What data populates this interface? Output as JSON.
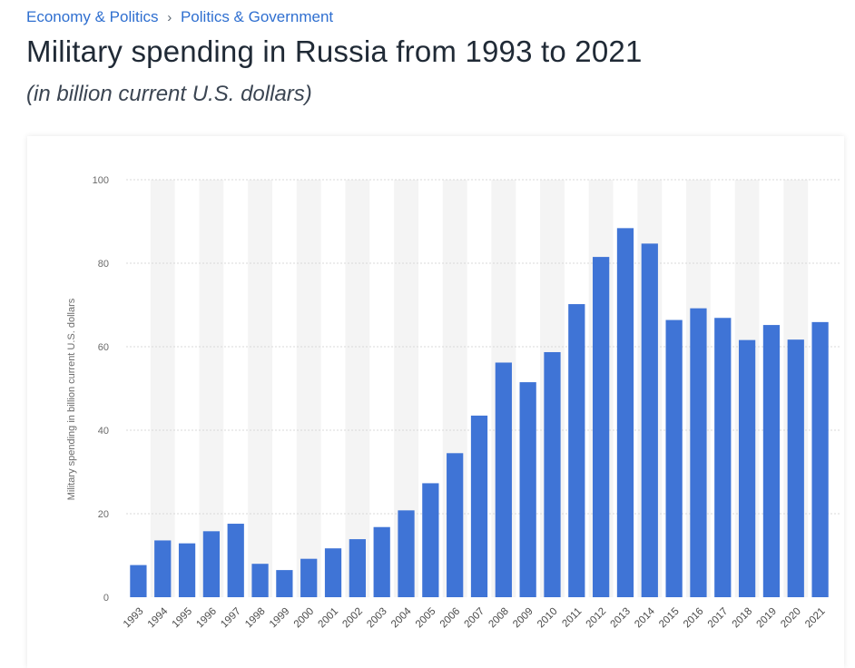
{
  "breadcrumb": {
    "items": [
      "Economy & Politics",
      "Politics & Government"
    ],
    "separator": "›"
  },
  "header": {
    "title": "Military spending in Russia from 1993 to 2021",
    "subtitle": "(in billion current U.S. dollars)"
  },
  "colors": {
    "bar": "#3f74d6",
    "link": "#2f6fd0",
    "band": "#f4f4f4",
    "grid": "#d9d9d9"
  },
  "chart_data": {
    "type": "bar",
    "title": "Military spending in Russia from 1993 to 2021",
    "subtitle": "(in billion current U.S. dollars)",
    "xlabel": "",
    "ylabel": "Military spending in billion current U.S. dollars",
    "ylim": [
      0,
      100
    ],
    "yticks": [
      0,
      20,
      40,
      60,
      80,
      100
    ],
    "grid": true,
    "categories": [
      "1993",
      "1994",
      "1995",
      "1996",
      "1997",
      "1998",
      "1999",
      "2000",
      "2001",
      "2002",
      "2003",
      "2004",
      "2005",
      "2006",
      "2007",
      "2008",
      "2009",
      "2010",
      "2011",
      "2012",
      "2013",
      "2014",
      "2015",
      "2016",
      "2017",
      "2018",
      "2019",
      "2020",
      "2021"
    ],
    "values": [
      7.7,
      13.6,
      12.9,
      15.8,
      17.6,
      8.0,
      6.5,
      9.2,
      11.7,
      13.9,
      16.8,
      20.8,
      27.3,
      34.5,
      43.5,
      56.2,
      51.5,
      58.7,
      70.2,
      81.5,
      88.4,
      84.7,
      66.4,
      69.2,
      66.9,
      61.6,
      65.2,
      61.7,
      65.9
    ]
  }
}
